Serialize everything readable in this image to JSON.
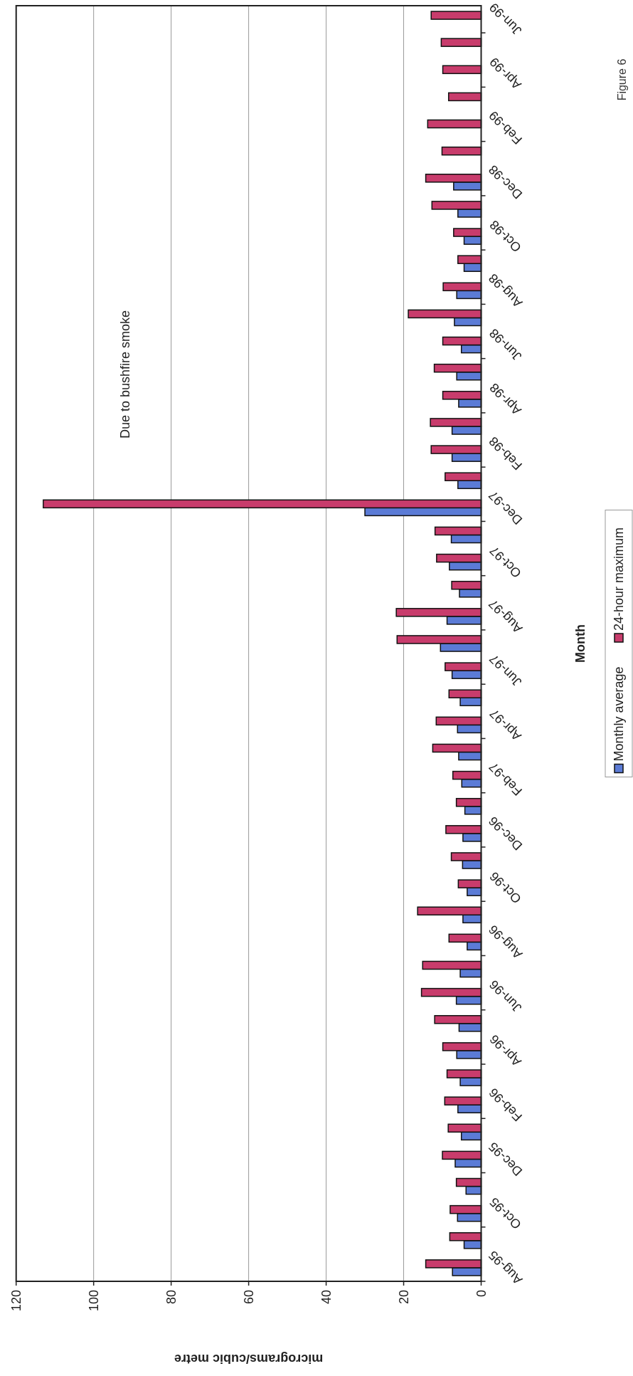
{
  "chart_data": {
    "type": "bar",
    "orientation": "horizontal",
    "categories": [
      "Jun-99",
      null,
      "Apr-99",
      null,
      "Feb-99",
      null,
      "Dec-98",
      null,
      "Oct-98",
      null,
      "Aug-98",
      null,
      "Jun-98",
      null,
      "Apr-98",
      null,
      "Feb-98",
      null,
      "Dec-97",
      null,
      "Oct-97",
      null,
      "Aug-97",
      null,
      "Jun-97",
      null,
      "Apr-97",
      null,
      "Feb-97",
      null,
      "Dec-96",
      null,
      "Oct-96",
      null,
      "Aug-96",
      null,
      "Jun-96",
      null,
      "Apr-96",
      null,
      "Feb-96",
      null,
      "Dec-95",
      null,
      "Oct-95",
      null,
      "Aug-95"
    ],
    "series": [
      {
        "name": "Monthly average",
        "color": "#5b7bd6",
        "values": [
          null,
          null,
          null,
          null,
          null,
          null,
          7.1,
          6.0,
          4.4,
          4.4,
          6.3,
          6.9,
          5.1,
          6.3,
          5.8,
          7.5,
          7.5,
          6.0,
          30,
          7.7,
          8.2,
          5.6,
          8.8,
          10.5,
          7.5,
          5.4,
          6.1,
          5.8,
          5.0,
          4.2,
          4.7,
          4.8,
          3.6,
          4.7,
          3.6,
          5.4,
          6.4,
          5.7,
          6.3,
          5.4,
          6.0,
          5.1,
          6.7,
          3.9,
          6.1,
          4.4,
          7.4
        ]
      },
      {
        "name": "24-hour maximum",
        "color": "#c83c6c",
        "values": [
          12.9,
          10.3,
          9.9,
          8.4,
          13.8,
          10.1,
          14.3,
          12.7,
          7.1,
          6.0,
          9.8,
          18.8,
          9.9,
          12.1,
          9.9,
          13.1,
          12.9,
          9.3,
          113,
          11.9,
          11.5,
          7.6,
          21.9,
          21.7,
          9.3,
          8.3,
          11.6,
          12.5,
          7.3,
          6.4,
          9.1,
          7.7,
          5.9,
          16.4,
          8.3,
          15.1,
          15.4,
          12.0,
          9.9,
          8.8,
          9.4,
          8.5,
          10.0,
          6.4,
          8.0,
          8.1,
          14.3
        ]
      }
    ],
    "xlabel": "micrograms/cubic metre",
    "ylabel": "Month",
    "xlim": [
      120,
      0
    ],
    "xticks": [
      120,
      100,
      80,
      60,
      40,
      20,
      0
    ],
    "grid": "x",
    "legend": "right",
    "annotations": [
      "Due to bushfire smoke",
      "Figure 6"
    ]
  }
}
